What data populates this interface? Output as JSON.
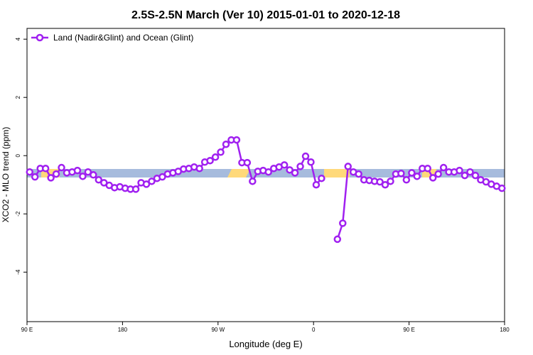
{
  "chart_data": {
    "type": "line",
    "title": "2.5S-2.5N March (Ver 10)   2015-01-01 to 2020-12-18",
    "x_label": "Longitude (deg E)",
    "y_label": "XCO2 - MLO trend (ppm)",
    "x": [
      92.5,
      97.5,
      102.5,
      107.5,
      112.5,
      117.5,
      122.5,
      127.5,
      132.5,
      137.5,
      142.5,
      147.5,
      152.5,
      157.5,
      162.5,
      167.5,
      172.5,
      177.5,
      182.5,
      187.5,
      192.5,
      197.5,
      202.5,
      207.5,
      212.5,
      217.5,
      222.5,
      227.5,
      232.5,
      237.5,
      242.5,
      247.5,
      252.5,
      257.5,
      262.5,
      267.5,
      272.5,
      277.5,
      282.5,
      287.5,
      292.5,
      297.5,
      302.5,
      307.5,
      312.5,
      317.5,
      322.5,
      327.5,
      332.5,
      337.5,
      342.5,
      347.5,
      352.5,
      357.5,
      362.5,
      367.5,
      372.5,
      377.5,
      382.5,
      387.5,
      392.5,
      397.5,
      402.5,
      407.5,
      412.5,
      417.5,
      422.5,
      427.5,
      432.5,
      437.5,
      442.5,
      447.5,
      452.5,
      457.5,
      462.5,
      467.5,
      472.5,
      477.5,
      482.5,
      487.5,
      492.5,
      497.5,
      502.5,
      507.5,
      512.5,
      517.5,
      522.5,
      527.5,
      532.5,
      537.5
    ],
    "series": [
      {
        "name": "Land (Nadir&Glint) and Ocean (Glint)",
        "color": "#a020f0",
        "values": [
          -0.56,
          -0.73,
          -0.44,
          -0.44,
          -0.76,
          -0.63,
          -0.41,
          -0.59,
          -0.56,
          -0.51,
          -0.71,
          -0.56,
          -0.66,
          -0.83,
          -0.93,
          -1.02,
          -1.1,
          -1.07,
          -1.12,
          -1.15,
          -1.15,
          -0.93,
          -0.98,
          -0.88,
          -0.78,
          -0.73,
          -0.63,
          -0.59,
          -0.54,
          -0.46,
          -0.44,
          -0.39,
          -0.44,
          -0.22,
          -0.17,
          -0.05,
          0.12,
          0.39,
          0.54,
          0.54,
          -0.24,
          -0.24,
          -0.88,
          -0.54,
          -0.51,
          -0.56,
          -0.44,
          -0.39,
          -0.32,
          -0.49,
          -0.59,
          -0.37,
          -0.02,
          -0.22,
          -1.0,
          -0.78,
          null,
          null,
          -2.87,
          -2.32,
          -0.37,
          -0.56,
          -0.63,
          -0.83,
          -0.85,
          -0.88,
          -0.9,
          -1.0,
          -0.88,
          -0.63,
          -0.61,
          -0.83,
          -0.59,
          -0.71,
          -0.44,
          -0.44,
          -0.76,
          -0.63,
          -0.41,
          -0.56,
          -0.56,
          -0.51,
          -0.68,
          -0.56,
          -0.68,
          -0.83,
          -0.9,
          -0.98,
          -1.05,
          -1.12
        ]
      }
    ],
    "xlim": [
      90,
      540
    ],
    "xticks": [
      {
        "value": 90,
        "label": "90 E"
      },
      180,
      {
        "value": 270,
        "label": "90 W"
      },
      {
        "value": 360,
        "label": "0"
      },
      {
        "value": 450,
        "label": "90 E"
      },
      {
        "value": 540,
        "label": "180"
      }
    ],
    "ylim": [
      -5.7,
      4.37
    ],
    "yticks": [
      -4,
      -2,
      0,
      2,
      4
    ],
    "legend": "top-left"
  }
}
